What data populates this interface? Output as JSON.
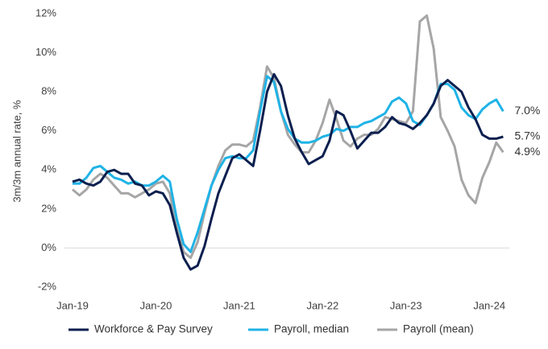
{
  "chart_data": {
    "type": "line",
    "y_label": "3m/3m annual rate, %",
    "categories": [
      "Jan-19",
      null,
      null,
      null,
      null,
      null,
      null,
      null,
      null,
      null,
      null,
      null,
      "Jan-20",
      null,
      null,
      null,
      null,
      null,
      null,
      null,
      null,
      null,
      null,
      null,
      "Jan-21",
      null,
      null,
      null,
      null,
      null,
      null,
      null,
      null,
      null,
      null,
      null,
      "Jan-22",
      null,
      null,
      null,
      null,
      null,
      null,
      null,
      null,
      null,
      null,
      null,
      "Jan-23",
      null,
      null,
      null,
      null,
      null,
      null,
      null,
      null,
      null,
      null,
      null,
      "Jan-24",
      null,
      null
    ],
    "series": [
      {
        "name": "Workforce & Pay Survey",
        "color": "#0b1f4f",
        "end_label": "5.7%",
        "values": [
          3.4,
          3.5,
          3.3,
          3.2,
          3.4,
          3.9,
          4.0,
          3.8,
          3.8,
          3.3,
          3.2,
          2.7,
          2.9,
          2.8,
          2.2,
          0.8,
          -0.5,
          -1.1,
          -0.9,
          0.1,
          1.5,
          2.8,
          3.7,
          4.6,
          4.8,
          4.5,
          4.2,
          6.0,
          8.0,
          8.9,
          8.3,
          6.8,
          5.6,
          4.9,
          4.3,
          4.5,
          4.7,
          5.5,
          7.0,
          6.8,
          6.0,
          5.1,
          5.5,
          5.9,
          5.9,
          6.2,
          6.7,
          6.4,
          6.3,
          6.1,
          6.4,
          6.8,
          7.4,
          8.3,
          8.6,
          8.3,
          8.0,
          7.2,
          6.6,
          5.8,
          5.6,
          5.6,
          5.7
        ]
      },
      {
        "name": "Payroll, median",
        "color": "#1fb3e6",
        "end_label": "7.0%",
        "values": [
          3.3,
          3.3,
          3.6,
          4.1,
          4.2,
          3.9,
          3.6,
          3.5,
          3.3,
          3.4,
          3.2,
          3.2,
          3.4,
          3.7,
          3.4,
          1.5,
          0.2,
          -0.2,
          0.8,
          2.0,
          3.2,
          4.0,
          4.6,
          4.7,
          4.6,
          4.6,
          5.0,
          7.0,
          8.8,
          8.5,
          7.0,
          6.1,
          5.6,
          5.4,
          5.4,
          5.5,
          5.7,
          5.8,
          6.1,
          6.0,
          6.2,
          6.2,
          6.4,
          6.5,
          6.7,
          6.9,
          7.5,
          7.7,
          7.4,
          6.5,
          6.3,
          6.8,
          7.4,
          8.4,
          8.4,
          8.1,
          7.2,
          6.8,
          6.6,
          7.1,
          7.4,
          7.6,
          7.0
        ]
      },
      {
        "name": "Payroll (mean)",
        "color": "#a6a6a6",
        "end_label": "4.9%",
        "values": [
          3.0,
          2.7,
          3.0,
          3.5,
          3.8,
          3.6,
          3.2,
          2.8,
          2.8,
          2.6,
          2.8,
          3.0,
          3.3,
          3.4,
          2.8,
          1.0,
          -0.2,
          -0.5,
          0.3,
          1.8,
          3.2,
          4.2,
          5.0,
          5.3,
          5.3,
          5.2,
          5.5,
          7.2,
          9.3,
          8.7,
          7.0,
          5.8,
          5.3,
          4.9,
          4.9,
          5.5,
          6.4,
          7.6,
          6.6,
          5.5,
          5.2,
          5.6,
          5.8,
          5.8,
          6.1,
          6.7,
          6.6,
          6.5,
          6.4,
          7.0,
          11.6,
          11.9,
          10.2,
          6.7,
          6.0,
          5.2,
          3.5,
          2.7,
          2.3,
          3.6,
          4.4,
          5.4,
          4.9
        ]
      }
    ],
    "ylim": [
      -2,
      12
    ],
    "yticks": [
      {
        "value": -2,
        "label": "-2%"
      },
      {
        "value": 0,
        "label": "0%"
      },
      {
        "value": 2,
        "label": "2%"
      },
      {
        "value": 4,
        "label": "4%"
      },
      {
        "value": 6,
        "label": "6%"
      },
      {
        "value": 8,
        "label": "8%"
      },
      {
        "value": 10,
        "label": "10%"
      },
      {
        "value": 12,
        "label": "12%"
      }
    ],
    "grid": false,
    "legend": "bottom"
  }
}
